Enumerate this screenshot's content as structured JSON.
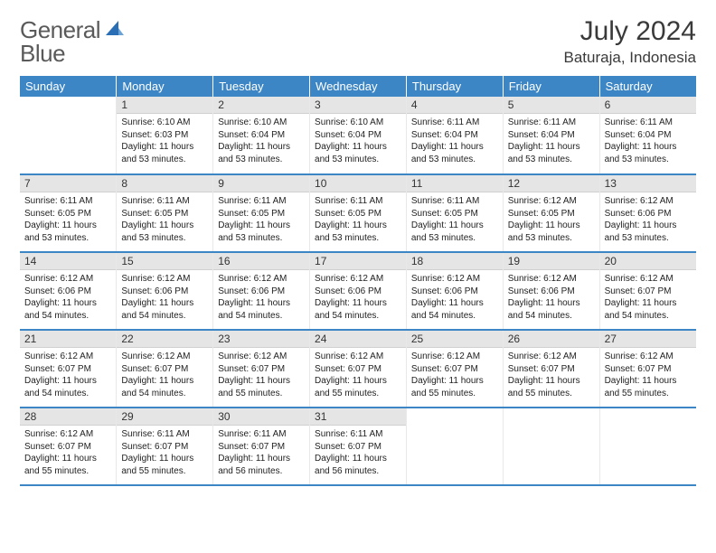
{
  "logo": {
    "text1": "General",
    "text2": "Blue"
  },
  "header": {
    "title": "July 2024",
    "location": "Baturaja, Indonesia"
  },
  "colors": {
    "brand_blue": "#3d86c6",
    "accent_blue": "#2a6fb5",
    "text": "#3a3a3a",
    "daynum_bg": "#e5e5e5"
  },
  "weekdays": [
    "Sunday",
    "Monday",
    "Tuesday",
    "Wednesday",
    "Thursday",
    "Friday",
    "Saturday"
  ],
  "weeks": [
    [
      {
        "num": "",
        "sunrise": "",
        "sunset": "",
        "daylight": ""
      },
      {
        "num": "1",
        "sunrise": "Sunrise: 6:10 AM",
        "sunset": "Sunset: 6:03 PM",
        "daylight": "Daylight: 11 hours and 53 minutes."
      },
      {
        "num": "2",
        "sunrise": "Sunrise: 6:10 AM",
        "sunset": "Sunset: 6:04 PM",
        "daylight": "Daylight: 11 hours and 53 minutes."
      },
      {
        "num": "3",
        "sunrise": "Sunrise: 6:10 AM",
        "sunset": "Sunset: 6:04 PM",
        "daylight": "Daylight: 11 hours and 53 minutes."
      },
      {
        "num": "4",
        "sunrise": "Sunrise: 6:11 AM",
        "sunset": "Sunset: 6:04 PM",
        "daylight": "Daylight: 11 hours and 53 minutes."
      },
      {
        "num": "5",
        "sunrise": "Sunrise: 6:11 AM",
        "sunset": "Sunset: 6:04 PM",
        "daylight": "Daylight: 11 hours and 53 minutes."
      },
      {
        "num": "6",
        "sunrise": "Sunrise: 6:11 AM",
        "sunset": "Sunset: 6:04 PM",
        "daylight": "Daylight: 11 hours and 53 minutes."
      }
    ],
    [
      {
        "num": "7",
        "sunrise": "Sunrise: 6:11 AM",
        "sunset": "Sunset: 6:05 PM",
        "daylight": "Daylight: 11 hours and 53 minutes."
      },
      {
        "num": "8",
        "sunrise": "Sunrise: 6:11 AM",
        "sunset": "Sunset: 6:05 PM",
        "daylight": "Daylight: 11 hours and 53 minutes."
      },
      {
        "num": "9",
        "sunrise": "Sunrise: 6:11 AM",
        "sunset": "Sunset: 6:05 PM",
        "daylight": "Daylight: 11 hours and 53 minutes."
      },
      {
        "num": "10",
        "sunrise": "Sunrise: 6:11 AM",
        "sunset": "Sunset: 6:05 PM",
        "daylight": "Daylight: 11 hours and 53 minutes."
      },
      {
        "num": "11",
        "sunrise": "Sunrise: 6:11 AM",
        "sunset": "Sunset: 6:05 PM",
        "daylight": "Daylight: 11 hours and 53 minutes."
      },
      {
        "num": "12",
        "sunrise": "Sunrise: 6:12 AM",
        "sunset": "Sunset: 6:05 PM",
        "daylight": "Daylight: 11 hours and 53 minutes."
      },
      {
        "num": "13",
        "sunrise": "Sunrise: 6:12 AM",
        "sunset": "Sunset: 6:06 PM",
        "daylight": "Daylight: 11 hours and 53 minutes."
      }
    ],
    [
      {
        "num": "14",
        "sunrise": "Sunrise: 6:12 AM",
        "sunset": "Sunset: 6:06 PM",
        "daylight": "Daylight: 11 hours and 54 minutes."
      },
      {
        "num": "15",
        "sunrise": "Sunrise: 6:12 AM",
        "sunset": "Sunset: 6:06 PM",
        "daylight": "Daylight: 11 hours and 54 minutes."
      },
      {
        "num": "16",
        "sunrise": "Sunrise: 6:12 AM",
        "sunset": "Sunset: 6:06 PM",
        "daylight": "Daylight: 11 hours and 54 minutes."
      },
      {
        "num": "17",
        "sunrise": "Sunrise: 6:12 AM",
        "sunset": "Sunset: 6:06 PM",
        "daylight": "Daylight: 11 hours and 54 minutes."
      },
      {
        "num": "18",
        "sunrise": "Sunrise: 6:12 AM",
        "sunset": "Sunset: 6:06 PM",
        "daylight": "Daylight: 11 hours and 54 minutes."
      },
      {
        "num": "19",
        "sunrise": "Sunrise: 6:12 AM",
        "sunset": "Sunset: 6:06 PM",
        "daylight": "Daylight: 11 hours and 54 minutes."
      },
      {
        "num": "20",
        "sunrise": "Sunrise: 6:12 AM",
        "sunset": "Sunset: 6:07 PM",
        "daylight": "Daylight: 11 hours and 54 minutes."
      }
    ],
    [
      {
        "num": "21",
        "sunrise": "Sunrise: 6:12 AM",
        "sunset": "Sunset: 6:07 PM",
        "daylight": "Daylight: 11 hours and 54 minutes."
      },
      {
        "num": "22",
        "sunrise": "Sunrise: 6:12 AM",
        "sunset": "Sunset: 6:07 PM",
        "daylight": "Daylight: 11 hours and 54 minutes."
      },
      {
        "num": "23",
        "sunrise": "Sunrise: 6:12 AM",
        "sunset": "Sunset: 6:07 PM",
        "daylight": "Daylight: 11 hours and 55 minutes."
      },
      {
        "num": "24",
        "sunrise": "Sunrise: 6:12 AM",
        "sunset": "Sunset: 6:07 PM",
        "daylight": "Daylight: 11 hours and 55 minutes."
      },
      {
        "num": "25",
        "sunrise": "Sunrise: 6:12 AM",
        "sunset": "Sunset: 6:07 PM",
        "daylight": "Daylight: 11 hours and 55 minutes."
      },
      {
        "num": "26",
        "sunrise": "Sunrise: 6:12 AM",
        "sunset": "Sunset: 6:07 PM",
        "daylight": "Daylight: 11 hours and 55 minutes."
      },
      {
        "num": "27",
        "sunrise": "Sunrise: 6:12 AM",
        "sunset": "Sunset: 6:07 PM",
        "daylight": "Daylight: 11 hours and 55 minutes."
      }
    ],
    [
      {
        "num": "28",
        "sunrise": "Sunrise: 6:12 AM",
        "sunset": "Sunset: 6:07 PM",
        "daylight": "Daylight: 11 hours and 55 minutes."
      },
      {
        "num": "29",
        "sunrise": "Sunrise: 6:11 AM",
        "sunset": "Sunset: 6:07 PM",
        "daylight": "Daylight: 11 hours and 55 minutes."
      },
      {
        "num": "30",
        "sunrise": "Sunrise: 6:11 AM",
        "sunset": "Sunset: 6:07 PM",
        "daylight": "Daylight: 11 hours and 56 minutes."
      },
      {
        "num": "31",
        "sunrise": "Sunrise: 6:11 AM",
        "sunset": "Sunset: 6:07 PM",
        "daylight": "Daylight: 11 hours and 56 minutes."
      },
      {
        "num": "",
        "sunrise": "",
        "sunset": "",
        "daylight": ""
      },
      {
        "num": "",
        "sunrise": "",
        "sunset": "",
        "daylight": ""
      },
      {
        "num": "",
        "sunrise": "",
        "sunset": "",
        "daylight": ""
      }
    ]
  ]
}
